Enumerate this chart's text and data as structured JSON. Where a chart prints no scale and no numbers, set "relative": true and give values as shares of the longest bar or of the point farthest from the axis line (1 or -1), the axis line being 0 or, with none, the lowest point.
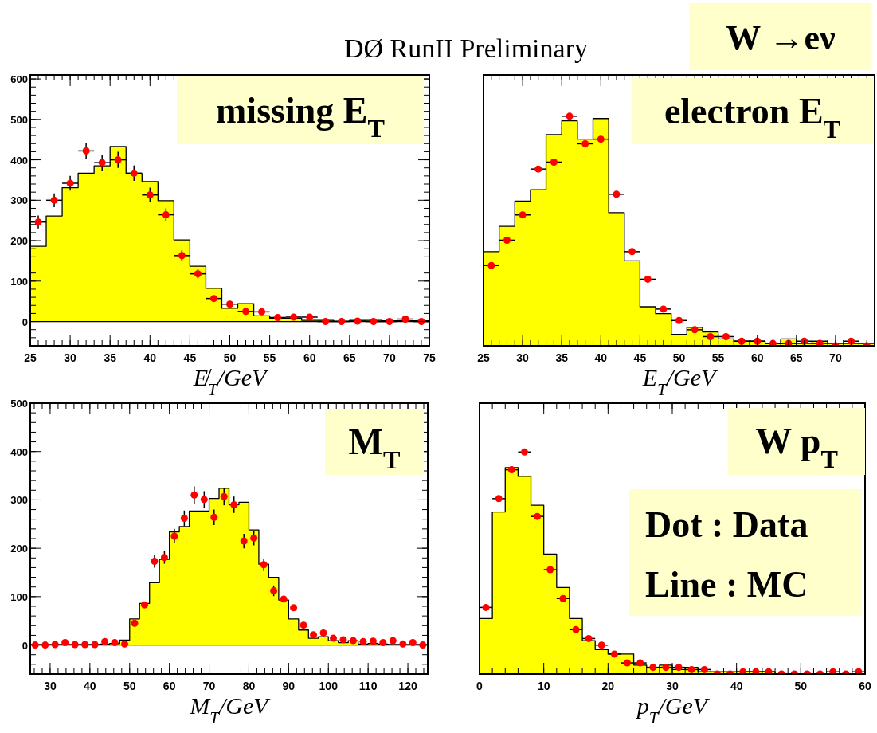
{
  "chart_data": [
    {
      "type": "histogram",
      "title": "missing E$_{T}$",
      "xlabel": "E̸$_{T}$/GeV",
      "annotations": [
        "DØ RunII Preliminary"
      ],
      "xlim": [
        25,
        75
      ],
      "xticks": [
        25,
        30,
        35,
        40,
        45,
        50,
        55,
        60,
        65,
        70,
        75
      ],
      "ylim": [
        -60,
        610
      ],
      "yticks": [
        0,
        100,
        200,
        300,
        400,
        500,
        600
      ],
      "series": [
        {
          "type": "histogram",
          "color": "#ffff00",
          "bins": [
            25,
            27,
            29,
            31,
            33,
            35,
            37,
            39,
            41,
            43,
            45,
            47,
            49,
            51,
            53,
            55,
            57,
            59,
            61,
            63,
            65,
            67,
            69,
            71,
            73,
            75
          ],
          "values": [
            186,
            261,
            331,
            367,
            385,
            433,
            366,
            346,
            299,
            202,
            137,
            82,
            33,
            44,
            14,
            8,
            8,
            3,
            3,
            1,
            3,
            3,
            2,
            2,
            2
          ]
        },
        {
          "type": "scatter",
          "color": "#ff0000",
          "x": [
            26,
            28,
            30,
            32,
            34,
            36,
            38,
            40,
            42,
            44,
            46,
            48,
            50,
            52,
            54,
            56,
            58,
            60,
            62,
            64,
            66,
            68,
            70,
            72,
            74
          ],
          "values": [
            246,
            300,
            342,
            422,
            393,
            400,
            367,
            313,
            264,
            163,
            118,
            57,
            43,
            25,
            24,
            10,
            11,
            11,
            0,
            0,
            1,
            0,
            0,
            6,
            0
          ],
          "errors": [
            16,
            17,
            18,
            20,
            20,
            20,
            19,
            18,
            16,
            13,
            11,
            null,
            null,
            null,
            null,
            null,
            null,
            null,
            null,
            null,
            null,
            null,
            null,
            null,
            null
          ],
          "xerrors": [
            1,
            1,
            1,
            1,
            1,
            1,
            1,
            1,
            1,
            1,
            1,
            1,
            1,
            1,
            1,
            1,
            1,
            1,
            1,
            1,
            1,
            1,
            1,
            1,
            1
          ]
        }
      ]
    },
    {
      "type": "histogram",
      "title": "electron E$_{T}$",
      "xlabel": "E$_{T}$/GeV",
      "annotations": [
        "W →eν"
      ],
      "relative": true,
      "xlim": [
        25,
        75
      ],
      "xticks": [
        25,
        30,
        35,
        40,
        45,
        50,
        55,
        60,
        65,
        70
      ],
      "series": [
        {
          "type": "histogram",
          "color": "#ffff00",
          "bins": [
            25,
            27,
            29,
            31,
            33,
            35,
            37,
            39,
            41,
            43,
            45,
            47,
            49,
            51,
            53,
            55,
            57,
            59,
            61,
            63,
            65,
            67,
            69,
            71,
            73,
            75
          ],
          "values": [
            0.41,
            0.52,
            0.63,
            0.68,
            0.92,
            0.98,
            0.9,
            0.99,
            0.58,
            0.37,
            0.17,
            0.14,
            0.05,
            0.08,
            0.06,
            0.03,
            0.02,
            0.02,
            0.01,
            0.03,
            0.01,
            0.02,
            0.01,
            0.01,
            0.01
          ]
        },
        {
          "type": "scatter",
          "color": "#ff0000",
          "x": [
            26,
            28,
            30,
            32,
            34,
            36,
            38,
            40,
            42,
            44,
            46,
            48,
            50,
            52,
            54,
            56,
            58,
            60,
            62,
            64,
            66,
            68,
            70,
            72,
            74
          ],
          "values": [
            0.35,
            0.46,
            0.57,
            0.77,
            0.8,
            1,
            0.88,
            0.9,
            0.66,
            0.41,
            0.29,
            0.16,
            0.11,
            0.07,
            0.04,
            0.04,
            0.02,
            0.02,
            0.01,
            0.01,
            0.02,
            0.01,
            0,
            0.02,
            0
          ],
          "xerrors": [
            1,
            1,
            1,
            1,
            1,
            1,
            1,
            1,
            1,
            1,
            1,
            1,
            1,
            1,
            1,
            1,
            1,
            1,
            1,
            1,
            1,
            1,
            1,
            1,
            1
          ]
        }
      ]
    },
    {
      "type": "histogram",
      "title": "M$_{T}$",
      "xlabel": "M$_{T}$/GeV",
      "xlim": [
        25,
        125
      ],
      "xticks": [
        30,
        40,
        50,
        60,
        70,
        80,
        90,
        100,
        110,
        120
      ],
      "ylim": [
        -60,
        500
      ],
      "yticks": [
        0,
        100,
        200,
        300,
        400,
        500
      ],
      "series": [
        {
          "type": "histogram",
          "color": "#ffff00",
          "bins": [
            25,
            27.5,
            30,
            32.5,
            35,
            37.5,
            40,
            42.5,
            45,
            47.5,
            50,
            52.5,
            55,
            57.5,
            60,
            62.5,
            65,
            67.5,
            70,
            72.5,
            75,
            77.5,
            80,
            82.5,
            85,
            87.5,
            90,
            92.5,
            95,
            97.5,
            100,
            102.5,
            105,
            107.5,
            110,
            112.5,
            115,
            117.5,
            120,
            122.5,
            125
          ],
          "values": [
            1,
            1,
            1,
            1,
            1,
            1,
            1,
            2,
            3,
            10,
            54,
            86,
            129,
            177,
            234,
            245,
            277,
            277,
            303,
            324,
            290,
            295,
            238,
            167,
            140,
            93,
            54,
            31,
            14,
            17,
            9,
            5,
            9,
            2,
            3,
            2,
            1,
            1,
            1,
            1
          ]
        },
        {
          "type": "scatter",
          "color": "#ff0000",
          "x": [
            26.25,
            28.75,
            31.25,
            33.75,
            36.25,
            38.75,
            41.25,
            43.75,
            46.25,
            48.75,
            51.25,
            53.75,
            56.25,
            58.75,
            61.25,
            63.75,
            66.25,
            68.75,
            71.25,
            73.75,
            76.25,
            78.75,
            81.25,
            83.75,
            86.25,
            88.75,
            91.25,
            93.75,
            96.25,
            98.75,
            101.25,
            103.75,
            106.25,
            108.75,
            111.25,
            113.75,
            116.25,
            118.75,
            121.25,
            123.75
          ],
          "values": [
            0,
            0,
            1,
            5,
            1,
            1,
            1,
            7,
            5,
            2,
            45,
            83,
            173,
            181,
            225,
            262,
            310,
            301,
            264,
            307,
            290,
            215,
            221,
            166,
            112,
            95,
            77,
            41,
            21,
            25,
            14,
            11,
            9,
            7,
            8,
            5,
            9,
            2,
            5,
            0
          ],
          "errors": [
            null,
            null,
            null,
            null,
            null,
            null,
            null,
            null,
            null,
            null,
            null,
            null,
            13,
            13,
            15,
            16,
            18,
            17,
            16,
            18,
            17,
            15,
            15,
            13,
            11,
            null,
            null,
            null,
            null,
            null,
            null,
            null,
            null,
            null,
            null,
            null,
            null,
            null,
            null,
            null
          ]
        }
      ]
    },
    {
      "type": "histogram",
      "title": "W p$_{T}$",
      "xlabel": "p$_{T}$/GeV",
      "annotations": [
        "Dot : Data",
        "Line : MC"
      ],
      "relative": true,
      "xlim": [
        0,
        60
      ],
      "xticks": [
        0,
        10,
        20,
        30,
        40,
        50,
        60
      ],
      "series": [
        {
          "type": "histogram",
          "color": "#ffff00",
          "bins": [
            0,
            2,
            4,
            6,
            8,
            10,
            12,
            14,
            16,
            18,
            20,
            22,
            24,
            26,
            28,
            30,
            32,
            34,
            36,
            38,
            40,
            42,
            44,
            46,
            48,
            50,
            52,
            54,
            56,
            58,
            60
          ],
          "values": [
            0.25,
            0.73,
            0.93,
            0.89,
            0.76,
            0.54,
            0.39,
            0.25,
            0.15,
            0.11,
            0.09,
            0.09,
            0.04,
            0.03,
            0.04,
            0.02,
            0.03,
            0.01,
            0.01,
            0.01,
            0.01,
            0.01,
            0.01,
            0,
            0,
            0,
            0,
            0,
            0,
            0
          ]
        },
        {
          "type": "scatter",
          "color": "#ff0000",
          "x": [
            1,
            3,
            5,
            7,
            9,
            11,
            13,
            15,
            17,
            19,
            21,
            23,
            25,
            27,
            29,
            31,
            33,
            35,
            37,
            39,
            41,
            43,
            45,
            47,
            49,
            51,
            53,
            55,
            57,
            59
          ],
          "values": [
            0.3,
            0.79,
            0.92,
            1,
            0.71,
            0.47,
            0.34,
            0.2,
            0.16,
            0.13,
            0.09,
            0.05,
            0.05,
            0.03,
            0.03,
            0.03,
            0.02,
            0.02,
            0,
            0,
            0.01,
            0.01,
            0.01,
            0,
            0,
            0,
            0,
            0.01,
            0,
            0.01
          ],
          "xerrors": [
            1,
            1,
            1,
            1,
            1,
            1,
            1,
            1,
            1,
            1,
            1,
            1,
            1,
            1,
            1,
            1,
            1,
            1,
            1,
            1,
            1,
            1,
            1,
            1,
            1,
            1,
            1,
            1,
            1,
            1
          ]
        }
      ]
    }
  ]
}
